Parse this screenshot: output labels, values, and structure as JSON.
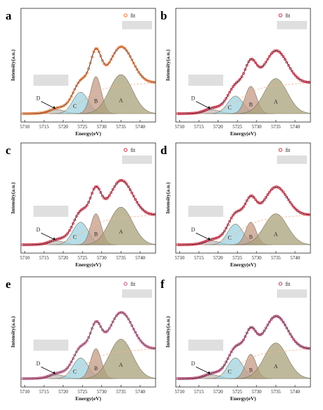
{
  "figure": {
    "xlabel": "Energy(eV)",
    "ylabel": "Intensity(a.u.)",
    "legend_label": "fit",
    "x_ticks": [
      "5710",
      "5715",
      "5720",
      "5725",
      "5730",
      "5735",
      "5740"
    ],
    "peak_names": [
      "D",
      "C",
      "B",
      "A"
    ]
  },
  "colors": {
    "peak_A": "#a9a27b",
    "peak_B": "#c49a86",
    "peak_C": "#9fd3e0",
    "peak_D": "#b9c2c8",
    "background_line": "#f2b48a",
    "fit_line": "#222222"
  },
  "chart_data": [
    {
      "type": "line",
      "panel": "a",
      "marker_color": "#e8661c",
      "xlim": [
        5709,
        5744
      ],
      "xlabel": "Energy(eV)",
      "ylabel": "Intensity(a.u.)",
      "legend": [
        {
          "name": "fit",
          "marker": "open-circle"
        }
      ],
      "peaks": [
        {
          "name": "D",
          "center": 5718.5,
          "amplitude": 0.04,
          "width": 2.0
        },
        {
          "name": "C",
          "center": 5724.5,
          "amplitude": 0.22,
          "width": 2.0
        },
        {
          "name": "B",
          "center": 5728.5,
          "amplitude": 0.38,
          "width": 1.4
        },
        {
          "name": "A",
          "center": 5735.0,
          "amplitude": 0.4,
          "width": 3.0
        }
      ],
      "spectrum_peaks_x": [
        5728.3,
        5735.0
      ],
      "grid": false
    },
    {
      "type": "line",
      "panel": "b",
      "marker_color": "#c8102e",
      "xlim": [
        5709,
        5744
      ],
      "xlabel": "Energy(eV)",
      "ylabel": "Intensity(a.u.)",
      "legend": [
        {
          "name": "fit",
          "marker": "open-circle"
        }
      ],
      "peaks": [
        {
          "name": "D",
          "center": 5718.5,
          "amplitude": 0.04,
          "width": 2.0
        },
        {
          "name": "C",
          "center": 5724.5,
          "amplitude": 0.18,
          "width": 2.0
        },
        {
          "name": "B",
          "center": 5728.5,
          "amplitude": 0.28,
          "width": 1.5
        },
        {
          "name": "A",
          "center": 5735.0,
          "amplitude": 0.36,
          "width": 3.0
        }
      ],
      "spectrum_peaks_x": [
        5728.5,
        5735.0
      ],
      "grid": false
    },
    {
      "type": "line",
      "panel": "c",
      "marker_color": "#c8102e",
      "xlim": [
        5709,
        5744
      ],
      "xlabel": "Energy(eV)",
      "ylabel": "Intensity(a.u.)",
      "legend": [
        {
          "name": "fit",
          "marker": "open-circle"
        }
      ],
      "peaks": [
        {
          "name": "D",
          "center": 5718.5,
          "amplitude": 0.04,
          "width": 2.0
        },
        {
          "name": "C",
          "center": 5724.5,
          "amplitude": 0.24,
          "width": 2.0
        },
        {
          "name": "B",
          "center": 5728.5,
          "amplitude": 0.33,
          "width": 1.4
        },
        {
          "name": "A",
          "center": 5735.0,
          "amplitude": 0.4,
          "width": 3.0
        }
      ],
      "spectrum_peaks_x": [
        5728.5,
        5735.0
      ],
      "grid": false
    },
    {
      "type": "line",
      "panel": "d",
      "marker_color": "#c8102e",
      "xlim": [
        5709,
        5744
      ],
      "xlabel": "Energy(eV)",
      "ylabel": "Intensity(a.u.)",
      "legend": [
        {
          "name": "fit",
          "marker": "open-circle"
        }
      ],
      "peaks": [
        {
          "name": "D",
          "center": 5718.5,
          "amplitude": 0.04,
          "width": 2.0
        },
        {
          "name": "C",
          "center": 5724.5,
          "amplitude": 0.22,
          "width": 2.0
        },
        {
          "name": "B",
          "center": 5728.5,
          "amplitude": 0.24,
          "width": 1.4
        },
        {
          "name": "A",
          "center": 5735.0,
          "amplitude": 0.33,
          "width": 3.0
        }
      ],
      "spectrum_peaks_x": [
        5728.5,
        5735.0
      ],
      "grid": false
    },
    {
      "type": "line",
      "panel": "e",
      "marker_color": "#b33b72",
      "xlim": [
        5709,
        5744
      ],
      "xlabel": "Energy(eV)",
      "ylabel": "Intensity(a.u.)",
      "legend": [
        {
          "name": "fit",
          "marker": "open-circle"
        }
      ],
      "peaks": [
        {
          "name": "D",
          "center": 5718.5,
          "amplitude": 0.04,
          "width": 2.0
        },
        {
          "name": "C",
          "center": 5724.5,
          "amplitude": 0.22,
          "width": 2.0
        },
        {
          "name": "B",
          "center": 5728.5,
          "amplitude": 0.32,
          "width": 1.4
        },
        {
          "name": "A",
          "center": 5735.0,
          "amplitude": 0.42,
          "width": 3.0
        }
      ],
      "spectrum_peaks_x": [
        5728.5,
        5735.0
      ],
      "grid": false
    },
    {
      "type": "line",
      "panel": "f",
      "marker_color": "#a3245a",
      "xlim": [
        5709,
        5744
      ],
      "xlabel": "Energy(eV)",
      "ylabel": "Intensity(a.u.)",
      "legend": [
        {
          "name": "fit",
          "marker": "open-circle"
        }
      ],
      "peaks": [
        {
          "name": "D",
          "center": 5718.5,
          "amplitude": 0.04,
          "width": 2.0
        },
        {
          "name": "C",
          "center": 5724.5,
          "amplitude": 0.22,
          "width": 2.0
        },
        {
          "name": "B",
          "center": 5728.5,
          "amplitude": 0.26,
          "width": 1.4
        },
        {
          "name": "A",
          "center": 5735.0,
          "amplitude": 0.38,
          "width": 3.0
        }
      ],
      "spectrum_peaks_x": [
        5728.5,
        5735.0
      ],
      "grid": false
    }
  ]
}
